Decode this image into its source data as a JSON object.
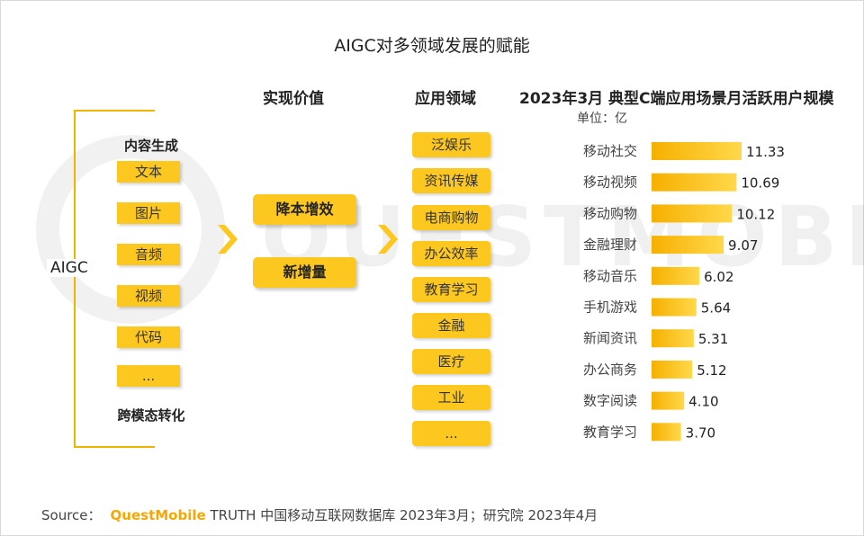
{
  "title": "AIGC对多领域发展的赋能",
  "headers": {
    "value": "实现价值",
    "domain": "应用领域",
    "chart": "2023年3月 典型C端应用场景月活跃用户规模"
  },
  "unit": "单位：亿",
  "watermark": "QUESTMOBILE",
  "aigc": {
    "label": "AIGC",
    "group1_title": "内容生成",
    "items": [
      "文本",
      "图片",
      "音频",
      "视频",
      "代码",
      "..."
    ],
    "group2_title": "跨模态转化"
  },
  "values": [
    "降本增效",
    "新增量"
  ],
  "domains": [
    "泛娱乐",
    "资讯传媒",
    "电商购物",
    "办公效率",
    "教育学习",
    "金融",
    "医疗",
    "工业",
    "..."
  ],
  "colors": {
    "accent": "#fcc820",
    "bar_start": "#f6b000",
    "bar_end": "#ffd84a",
    "bracket": "#f0b400",
    "brand": "#f5a800"
  },
  "chart_data": {
    "type": "bar",
    "orientation": "horizontal",
    "title": "2023年3月 典型C端应用场景月活跃用户规模",
    "unit": "单位：亿",
    "categories": [
      "移动社交",
      "移动视频",
      "移动购物",
      "金融理财",
      "移动音乐",
      "手机游戏",
      "新闻资讯",
      "办公商务",
      "数字阅读",
      "教育学习"
    ],
    "values": [
      11.33,
      10.69,
      10.12,
      9.07,
      6.02,
      5.64,
      5.31,
      5.12,
      4.1,
      3.7
    ],
    "value_labels": [
      "11.33",
      "10.69",
      "10.12",
      "9.07",
      "6.02",
      "5.64",
      "5.31",
      "5.12",
      "4.10",
      "3.70"
    ],
    "xlim": [
      0,
      11.33
    ],
    "grid": false
  },
  "source": {
    "prefix": "Source：",
    "brand": "QuestMobile",
    "text": " TRUTH 中国移动互联网数据库 2023年3月；研究院 2023年4月"
  }
}
